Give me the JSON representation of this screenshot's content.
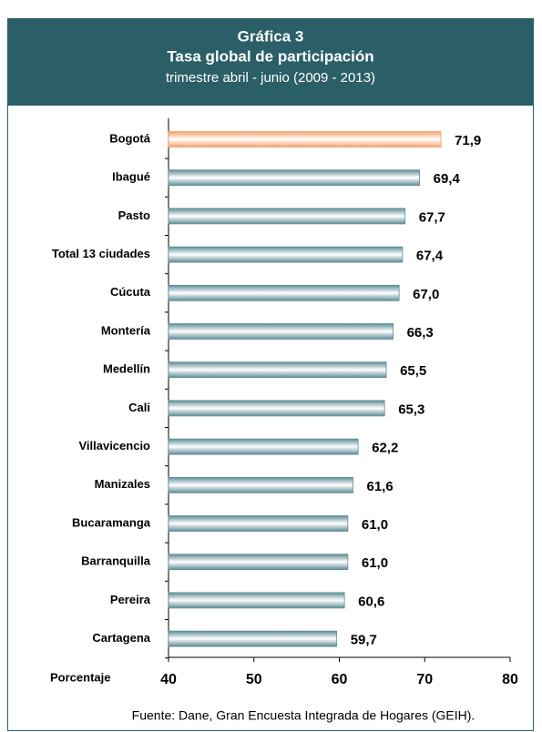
{
  "chart_data": {
    "type": "barh",
    "title": "Gráfica 3",
    "subtitle": "Tasa global de participación",
    "period": "trimestre  abril - junio (2009 - 2013)",
    "categories": [
      "Bogotá",
      "Ibagué",
      "Pasto",
      "Total 13 ciudades",
      "Cúcuta",
      "Montería",
      "Medellín",
      "Cali",
      "Villavicencio",
      "Manizales",
      "Bucaramanga",
      "Barranquilla",
      "Pereira",
      "Cartagena"
    ],
    "values": [
      71.9,
      69.4,
      67.7,
      67.4,
      67.0,
      66.3,
      65.5,
      65.3,
      62.2,
      61.6,
      61.0,
      61.0,
      60.6,
      59.7
    ],
    "value_labels": [
      "71,9",
      "69,4",
      "67,7",
      "67,4",
      "67,0",
      "66,3",
      "65,5",
      "65,3",
      "62,2",
      "61,6",
      "61,0",
      "61,0",
      "60,6",
      "59,7"
    ],
    "colors": [
      "#f4a06c",
      "#5f8d96",
      "#5f8d96",
      "#5f8d96",
      "#5f8d96",
      "#5f8d96",
      "#5f8d96",
      "#5f8d96",
      "#5f8d96",
      "#5f8d96",
      "#5f8d96",
      "#5f8d96",
      "#5f8d96",
      "#5f8d96"
    ],
    "xlabel": "Porcentaje",
    "xlim": [
      40,
      80
    ],
    "xticks": [
      40,
      50,
      60,
      70,
      80
    ],
    "source": "Fuente: Dane, Gran Encuesta Integrada de Hogares (GEIH)."
  }
}
